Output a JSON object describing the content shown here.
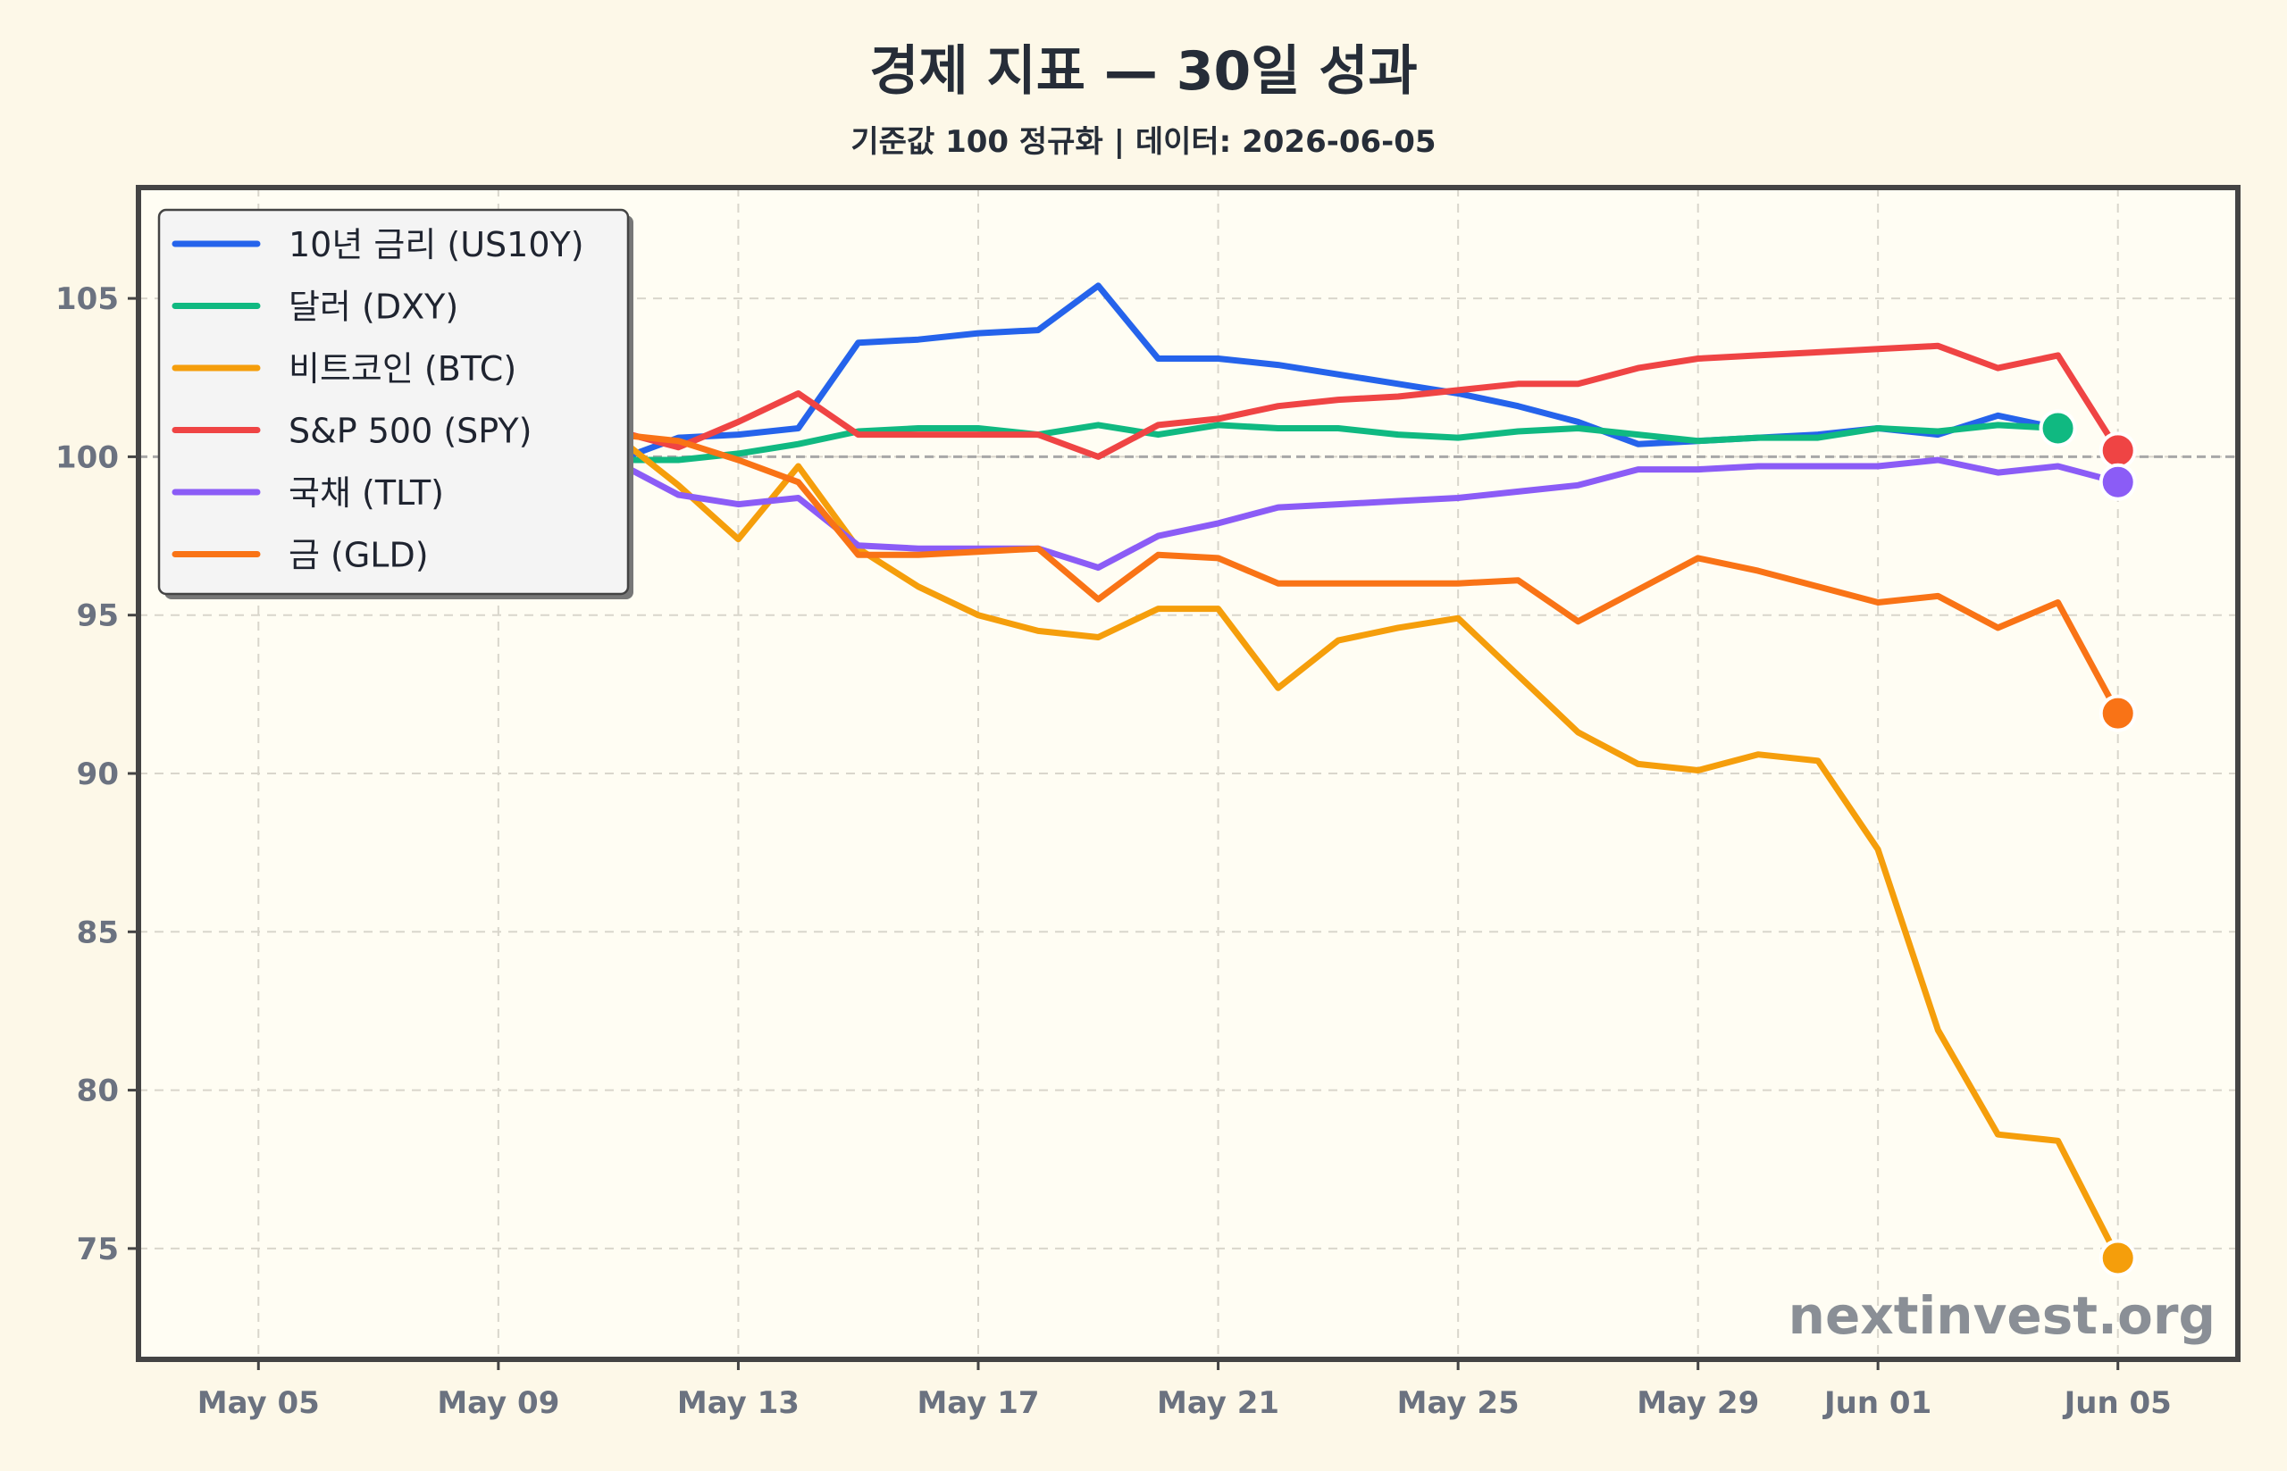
{
  "chart_data": {
    "type": "line",
    "title": "경제 지표 — 30일 성과",
    "subtitle": "기준값 100 정규화 | 데이터: 2026-06-05",
    "watermark": "nextinvest.org",
    "x_tick_labels": [
      "May 05",
      "May 09",
      "May 13",
      "May 17",
      "May 21",
      "May 25",
      "May 29",
      "Jun 01",
      "Jun 05"
    ],
    "x_tick_dates": [
      "2026-05-05",
      "2026-05-09",
      "2026-05-13",
      "2026-05-17",
      "2026-05-21",
      "2026-05-25",
      "2026-05-29",
      "2026-06-01",
      "2026-06-05"
    ],
    "x_range": [
      "2026-05-03",
      "2026-06-07"
    ],
    "y_ticks": [
      75,
      80,
      85,
      90,
      95,
      100,
      105
    ],
    "ylim": [
      71.5,
      108.5
    ],
    "baseline": 100,
    "grid": true,
    "legend_position": "top-left",
    "x": [
      "2026-05-05",
      "2026-05-06",
      "2026-05-07",
      "2026-05-08",
      "2026-05-09",
      "2026-05-10",
      "2026-05-11",
      "2026-05-12",
      "2026-05-13",
      "2026-05-14",
      "2026-05-15",
      "2026-05-16",
      "2026-05-17",
      "2026-05-18",
      "2026-05-19",
      "2026-05-20",
      "2026-05-21",
      "2026-05-22",
      "2026-05-23",
      "2026-05-24",
      "2026-05-25",
      "2026-05-26",
      "2026-05-27",
      "2026-05-28",
      "2026-05-29",
      "2026-05-30",
      "2026-05-31",
      "2026-06-01",
      "2026-06-02",
      "2026-06-03",
      "2026-06-04",
      "2026-06-05"
    ],
    "series": [
      {
        "name": "10년 금리 (US10Y)",
        "color": "#2563eb",
        "values": [
          100.0,
          98.6,
          99.2,
          99.6,
          99.8,
          99.6,
          99.9,
          100.6,
          100.7,
          100.9,
          103.6,
          103.7,
          103.9,
          104.0,
          105.4,
          103.1,
          103.1,
          102.9,
          102.6,
          102.3,
          102.0,
          101.6,
          101.1,
          100.4,
          100.5,
          100.6,
          100.7,
          100.9,
          100.7,
          101.3,
          100.9,
          null
        ]
      },
      {
        "name": "달러 (DXY)",
        "color": "#10b981",
        "values": [
          100.0,
          99.6,
          99.8,
          99.9,
          100.0,
          99.8,
          99.9,
          99.9,
          100.1,
          100.4,
          100.8,
          100.9,
          100.9,
          100.7,
          101.0,
          100.7,
          101.0,
          100.9,
          100.9,
          100.7,
          100.6,
          100.8,
          100.9,
          100.7,
          100.5,
          100.6,
          100.6,
          100.9,
          100.8,
          101.0,
          100.9,
          null
        ]
      },
      {
        "name": "비트코인 (BTC)",
        "color": "#f59e0b",
        "values": [
          100.0,
          98.9,
          98.6,
          99.6,
          100.4,
          100.9,
          100.6,
          99.1,
          97.4,
          99.7,
          97.1,
          95.9,
          95.0,
          94.5,
          94.3,
          95.2,
          95.2,
          92.7,
          94.2,
          94.6,
          94.9,
          93.1,
          91.3,
          90.3,
          90.1,
          90.6,
          90.4,
          87.6,
          81.9,
          78.6,
          78.4,
          74.7
        ]
      },
      {
        "name": "S&P 500 (SPY)",
        "color": "#ef4444",
        "values": [
          100.0,
          99.6,
          99.9,
          100.3,
          100.6,
          100.7,
          100.8,
          100.3,
          101.1,
          102.0,
          100.7,
          100.7,
          100.7,
          100.7,
          100.0,
          101.0,
          101.2,
          101.6,
          101.8,
          101.9,
          102.1,
          102.3,
          102.3,
          102.8,
          103.1,
          103.2,
          103.3,
          103.4,
          103.5,
          102.8,
          103.2,
          100.2
        ]
      },
      {
        "name": "국채 (TLT)",
        "color": "#8b5cf6",
        "values": [
          100.0,
          99.4,
          99.7,
          99.8,
          99.9,
          99.6,
          99.8,
          98.8,
          98.5,
          98.7,
          97.2,
          97.1,
          97.1,
          97.1,
          96.5,
          97.5,
          97.9,
          98.4,
          98.5,
          98.6,
          98.7,
          98.9,
          99.1,
          99.6,
          99.6,
          99.7,
          99.7,
          99.7,
          99.9,
          99.5,
          99.7,
          99.2
        ]
      },
      {
        "name": "금 (GLD)",
        "color": "#f97316",
        "values": [
          100.0,
          99.9,
          100.1,
          100.4,
          100.5,
          100.6,
          100.7,
          100.5,
          99.9,
          99.2,
          96.9,
          96.9,
          97.0,
          97.1,
          95.5,
          96.9,
          96.8,
          96.0,
          96.0,
          96.0,
          96.0,
          96.1,
          94.8,
          95.8,
          96.8,
          96.4,
          95.9,
          95.4,
          95.6,
          94.6,
          95.4,
          91.9
        ]
      }
    ]
  }
}
